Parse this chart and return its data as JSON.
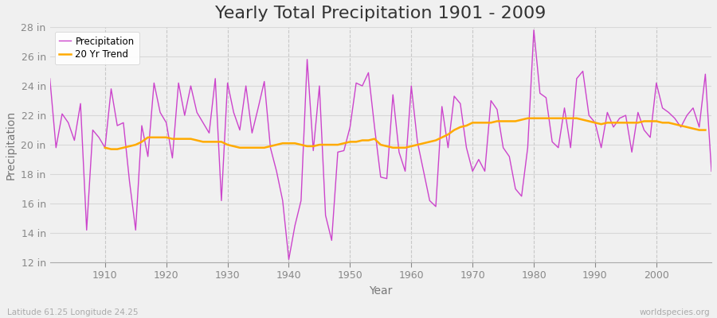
{
  "title": "Yearly Total Precipitation 1901 - 2009",
  "xlabel": "Year",
  "ylabel": "Precipitation",
  "lat_lon_label": "Latitude 61.25 Longitude 24.25",
  "watermark": "worldspecies.org",
  "years": [
    1901,
    1902,
    1903,
    1904,
    1905,
    1906,
    1907,
    1908,
    1909,
    1910,
    1911,
    1912,
    1913,
    1914,
    1915,
    1916,
    1917,
    1918,
    1919,
    1920,
    1921,
    1922,
    1923,
    1924,
    1925,
    1926,
    1927,
    1928,
    1929,
    1930,
    1931,
    1932,
    1933,
    1934,
    1935,
    1936,
    1937,
    1938,
    1939,
    1940,
    1941,
    1942,
    1943,
    1944,
    1945,
    1946,
    1947,
    1948,
    1949,
    1950,
    1951,
    1952,
    1953,
    1954,
    1955,
    1956,
    1957,
    1958,
    1959,
    1960,
    1961,
    1962,
    1963,
    1964,
    1965,
    1966,
    1967,
    1968,
    1969,
    1970,
    1971,
    1972,
    1973,
    1974,
    1975,
    1976,
    1977,
    1978,
    1979,
    1980,
    1981,
    1982,
    1983,
    1984,
    1985,
    1986,
    1987,
    1988,
    1989,
    1990,
    1991,
    1992,
    1993,
    1994,
    1995,
    1996,
    1997,
    1998,
    1999,
    2000,
    2001,
    2002,
    2003,
    2004,
    2005,
    2006,
    2007,
    2008,
    2009
  ],
  "precipitation": [
    24.5,
    19.8,
    22.1,
    21.5,
    20.3,
    22.8,
    14.2,
    21.0,
    20.5,
    19.8,
    23.8,
    21.3,
    21.5,
    17.5,
    14.2,
    21.3,
    19.2,
    24.2,
    22.2,
    21.5,
    19.1,
    24.2,
    22.0,
    24.0,
    22.2,
    21.5,
    20.8,
    24.5,
    16.2,
    24.2,
    22.2,
    21.0,
    24.0,
    20.8,
    22.5,
    24.3,
    19.8,
    18.2,
    16.2,
    12.2,
    14.5,
    16.2,
    25.8,
    19.6,
    24.0,
    15.2,
    13.5,
    19.5,
    19.6,
    21.2,
    24.2,
    24.0,
    24.9,
    21.2,
    17.8,
    17.7,
    23.4,
    19.5,
    18.2,
    24.0,
    20.2,
    18.2,
    16.2,
    15.8,
    22.6,
    19.8,
    23.3,
    22.8,
    19.8,
    18.2,
    19.0,
    18.2,
    23.0,
    22.4,
    19.8,
    19.2,
    17.0,
    16.5,
    19.8,
    27.8,
    23.5,
    23.2,
    20.2,
    19.8,
    22.5,
    19.8,
    24.5,
    25.0,
    22.0,
    21.5,
    19.8,
    22.2,
    21.2,
    21.8,
    22.0,
    19.5,
    22.2,
    21.0,
    20.5,
    24.2,
    22.5,
    22.2,
    21.8,
    21.2,
    22.0,
    22.5,
    21.2,
    24.8,
    18.2
  ],
  "trend_start_year": 1910,
  "trend": [
    19.8,
    19.7,
    19.7,
    19.8,
    19.9,
    20.0,
    20.2,
    20.5,
    20.5,
    20.5,
    20.5,
    20.4,
    20.4,
    20.4,
    20.4,
    20.3,
    20.2,
    20.2,
    20.2,
    20.2,
    20.0,
    19.9,
    19.8,
    19.8,
    19.8,
    19.8,
    19.8,
    19.9,
    20.0,
    20.1,
    20.1,
    20.1,
    20.0,
    19.9,
    19.9,
    20.0,
    20.0,
    20.0,
    20.0,
    20.1,
    20.2,
    20.2,
    20.3,
    20.3,
    20.4,
    20.0,
    19.9,
    19.8,
    19.8,
    19.8,
    19.9,
    20.0,
    20.1,
    20.2,
    20.3,
    20.5,
    20.7,
    21.0,
    21.2,
    21.3,
    21.5,
    21.5,
    21.5,
    21.5,
    21.6,
    21.6,
    21.6,
    21.6,
    21.7,
    21.8,
    21.8,
    21.8,
    21.8,
    21.8,
    21.8,
    21.8,
    21.8,
    21.8,
    21.7,
    21.6,
    21.5,
    21.4,
    21.5,
    21.5,
    21.5,
    21.5,
    21.5,
    21.5,
    21.6,
    21.6,
    21.6,
    21.5,
    21.5,
    21.4,
    21.3,
    21.2,
    21.1,
    21.0,
    21.0
  ],
  "precip_color": "#cc44cc",
  "trend_color": "#ffaa00",
  "fig_bg_color": "#f0f0f0",
  "plot_bg_color": "#f0f0f0",
  "grid_color_h": "#d8d8d8",
  "grid_color_v": "#c8c8c8",
  "ylim": [
    12,
    28
  ],
  "yticks": [
    12,
    14,
    16,
    18,
    20,
    22,
    24,
    26,
    28
  ],
  "ytick_labels": [
    "12 in",
    "14 in",
    "16 in",
    "18 in",
    "20 in",
    "22 in",
    "24 in",
    "26 in",
    "28 in"
  ],
  "xlim": [
    1901,
    2009
  ],
  "xticks": [
    1910,
    1920,
    1930,
    1940,
    1950,
    1960,
    1970,
    1980,
    1990,
    2000
  ],
  "title_fontsize": 16,
  "axis_label_fontsize": 10,
  "tick_fontsize": 9,
  "legend_labels": [
    "Precipitation",
    "20 Yr Trend"
  ]
}
